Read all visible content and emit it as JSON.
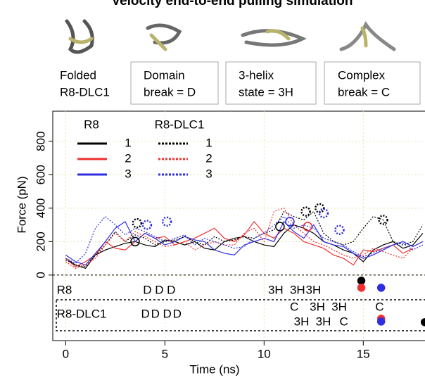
{
  "header": {
    "title": "Velocity end-to-end pulling simulation",
    "states": [
      [
        "Folded",
        "R8-DLC1"
      ],
      [
        "Domain",
        "break = D"
      ],
      [
        "3-helix",
        "state = 3H"
      ],
      [
        "Complex",
        "break = C"
      ]
    ]
  },
  "chart_data": {
    "type": "line",
    "xlabel": "Time (ns)",
    "ylabel": "Force (pN)",
    "x": [
      0,
      0.5,
      1,
      1.5,
      2,
      2.5,
      3,
      3.5,
      4,
      4.5,
      5,
      5.5,
      6,
      6.5,
      7,
      7.5,
      8,
      8.5,
      9,
      9.5,
      10,
      10.5,
      11,
      11.5,
      12,
      12.5,
      13,
      13.5,
      14,
      14.5,
      15,
      15.5,
      16,
      16.5,
      17,
      17.5,
      18
    ],
    "xlim": [
      -0.65,
      18.5
    ],
    "ylim": [
      -392,
      980
    ],
    "xticks": [
      0,
      5,
      10,
      15
    ],
    "yticks": [
      0,
      200,
      400,
      600,
      800
    ],
    "grid": true,
    "legend_titles": [
      "R8",
      "R8-DLC1"
    ],
    "series": [
      {
        "name": "1",
        "group": "R8",
        "color": "#000000",
        "dash": false,
        "values": [
          100,
          60,
          40,
          120,
          150,
          170,
          190,
          200,
          180,
          170,
          210,
          200,
          180,
          200,
          160,
          150,
          200,
          220,
          230,
          200,
          180,
          170,
          250,
          300,
          280,
          250,
          200,
          180,
          150,
          130,
          80,
          150,
          180,
          200,
          160,
          180,
          250
        ]
      },
      {
        "name": "2",
        "group": "R8",
        "color": "#f03030",
        "dash": false,
        "values": [
          100,
          50,
          80,
          120,
          200,
          160,
          150,
          200,
          250,
          220,
          230,
          180,
          200,
          220,
          250,
          280,
          220,
          200,
          240,
          320,
          250,
          220,
          280,
          250,
          200,
          180,
          160,
          120,
          100,
          60,
          150,
          140,
          160,
          180,
          130,
          160,
          null
        ]
      },
      {
        "name": "3",
        "group": "R8",
        "color": "#2e2ee0",
        "dash": false,
        "values": [
          120,
          80,
          60,
          130,
          200,
          280,
          320,
          200,
          250,
          220,
          180,
          200,
          230,
          210,
          200,
          150,
          130,
          120,
          180,
          200,
          220,
          200,
          320,
          260,
          220,
          300,
          200,
          180,
          170,
          130,
          100,
          120,
          150,
          180,
          200,
          170,
          200
        ]
      },
      {
        "name": "1",
        "group": "R8-DLC1",
        "color": "#000000",
        "dash": true,
        "values": [
          90,
          60,
          50,
          120,
          180,
          260,
          200,
          240,
          220,
          180,
          200,
          210,
          230,
          200,
          180,
          230,
          200,
          210,
          230,
          220,
          250,
          270,
          380,
          350,
          330,
          380,
          250,
          200,
          180,
          200,
          280,
          350,
          330,
          200,
          180,
          200,
          300
        ]
      },
      {
        "name": "2",
        "group": "R8-DLC1",
        "color": "#f03030",
        "dash": true,
        "values": [
          80,
          40,
          60,
          100,
          180,
          250,
          200,
          260,
          230,
          200,
          170,
          180,
          200,
          150,
          180,
          200,
          180,
          180,
          250,
          280,
          200,
          380,
          400,
          300,
          250,
          200,
          180,
          150,
          120,
          100,
          120,
          160,
          140,
          120,
          100,
          160,
          null
        ]
      },
      {
        "name": "3",
        "group": "R8-DLC1",
        "color": "#2e2ee0",
        "dash": true,
        "values": [
          100,
          70,
          130,
          280,
          350,
          300,
          240,
          280,
          260,
          230,
          200,
          220,
          240,
          180,
          220,
          200,
          180,
          160,
          170,
          220,
          250,
          300,
          350,
          280,
          300,
          280,
          220,
          200,
          180,
          140,
          110,
          130,
          160,
          180,
          190,
          150,
          180
        ]
      }
    ],
    "annotations": [
      {
        "text": "R8",
        "x": -0.45,
        "y": -93,
        "color": "#000000"
      },
      {
        "text": "R8-DLC1",
        "x": -0.45,
        "y": -236,
        "color": "#000000"
      },
      {
        "text": "D",
        "x": 3.9,
        "y": -93,
        "color": "#000000"
      },
      {
        "text": "D",
        "x": 4.5,
        "y": -93,
        "color": "#f03030"
      },
      {
        "text": "D",
        "x": 5.1,
        "y": -93,
        "color": "#2e2ee0"
      },
      {
        "text": "3H",
        "x": 10.2,
        "y": -93,
        "color": "#000000"
      },
      {
        "text": "3H",
        "x": 11.3,
        "y": -93,
        "color": "#2e2ee0"
      },
      {
        "text": "3H",
        "x": 12.1,
        "y": -93,
        "color": "#f03030"
      },
      {
        "text": "C",
        "x": 11.3,
        "y": -194,
        "color": "#f03030"
      },
      {
        "text": "3H",
        "x": 12.3,
        "y": -194,
        "color": "#000000"
      },
      {
        "text": "3H",
        "x": 13.4,
        "y": -194,
        "color": "#000000"
      },
      {
        "text": "C",
        "x": 15.6,
        "y": -194,
        "color": "#000000"
      },
      {
        "text": "D",
        "x": 3.8,
        "y": -236,
        "color": "#000000"
      },
      {
        "text": "D",
        "x": 4.3,
        "y": -236,
        "color": "#2e2ee0"
      },
      {
        "text": "D",
        "x": 4.9,
        "y": -236,
        "color": "#f03030"
      },
      {
        "text": "D",
        "x": 5.4,
        "y": -236,
        "color": "#2e2ee0"
      },
      {
        "text": "3H",
        "x": 11.5,
        "y": -282,
        "color": "#f03030"
      },
      {
        "text": "3H",
        "x": 12.6,
        "y": -282,
        "color": "#2e2ee0"
      },
      {
        "text": "C",
        "x": 13.8,
        "y": -282,
        "color": "#2e2ee0"
      }
    ],
    "markers": [
      {
        "x": 14.9,
        "y": -34,
        "color": "#000000",
        "shape": "dot"
      },
      {
        "x": 14.9,
        "y": -76,
        "color": "#f03030",
        "shape": "dot"
      },
      {
        "x": 15.9,
        "y": -76,
        "color": "#2e2ee0",
        "shape": "dot"
      },
      {
        "x": 15.9,
        "y": -261,
        "color": "#f03030",
        "shape": "dot"
      },
      {
        "x": 15.9,
        "y": -278,
        "color": "#2e2ee0",
        "shape": "dot"
      },
      {
        "x": 18.1,
        "y": -282,
        "color": "#000000",
        "shape": "dot"
      },
      {
        "x": 3.5,
        "y": 200,
        "color": "#000000",
        "shape": "open"
      },
      {
        "x": 10.8,
        "y": 290,
        "color": "#000000",
        "shape": "open"
      },
      {
        "x": 11.3,
        "y": 320,
        "color": "#2e2ee0",
        "shape": "open"
      },
      {
        "x": 12.2,
        "y": 290,
        "color": "#f03030",
        "shape": "open"
      },
      {
        "x": 3.6,
        "y": 310,
        "color": "#000000",
        "shape": "dotted"
      },
      {
        "x": 4.1,
        "y": 300,
        "color": "#2e2ee0",
        "shape": "dotted"
      },
      {
        "x": 5.1,
        "y": 320,
        "color": "#2e2ee0",
        "shape": "dotted"
      },
      {
        "x": 12.1,
        "y": 380,
        "color": "#000000",
        "shape": "dotted"
      },
      {
        "x": 12.8,
        "y": 400,
        "color": "#000000",
        "shape": "dotted"
      },
      {
        "x": 13,
        "y": 370,
        "color": "#2e2ee0",
        "shape": "dotted"
      },
      {
        "x": 13.8,
        "y": 270,
        "color": "#2e2ee0",
        "shape": "dotted"
      },
      {
        "x": 16,
        "y": 330,
        "color": "#000000",
        "shape": "dotted"
      }
    ]
  }
}
